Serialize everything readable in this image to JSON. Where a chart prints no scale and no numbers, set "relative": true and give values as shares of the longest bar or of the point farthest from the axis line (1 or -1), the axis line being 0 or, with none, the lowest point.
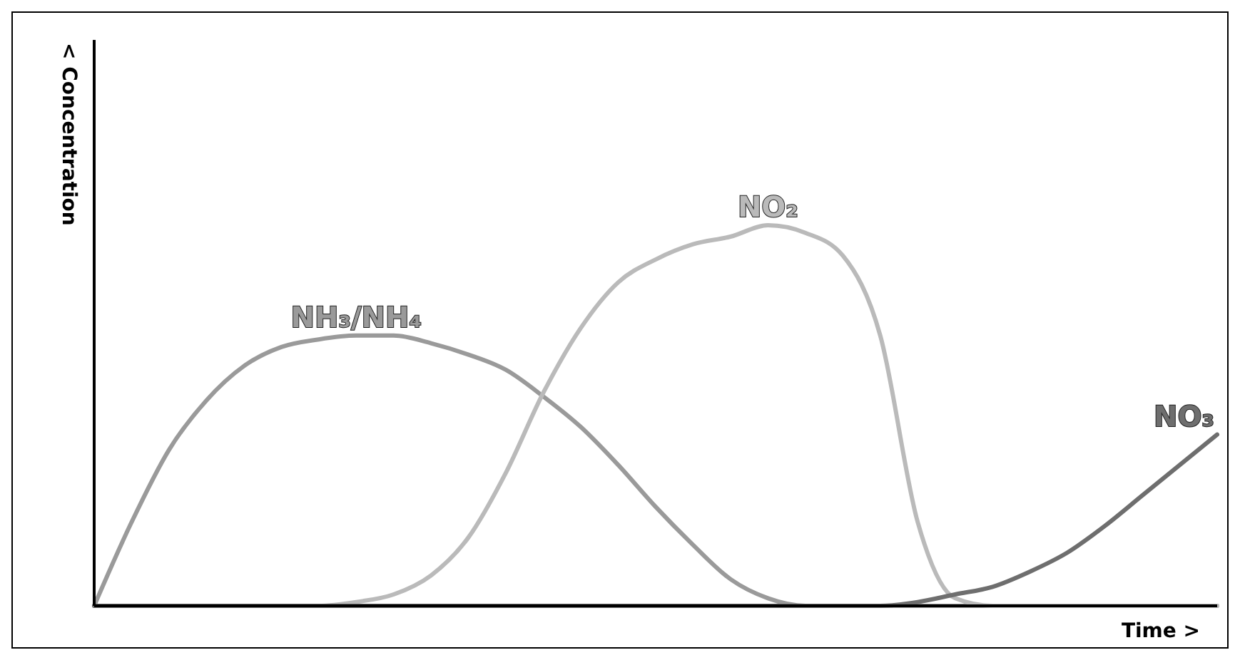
{
  "chart_data": {
    "type": "line",
    "relative": true,
    "xlabel": "Time >",
    "ylabel": "< Concentration",
    "marker": "none",
    "line_style": "solid",
    "categories": [
      null,
      null,
      null,
      null,
      null,
      null,
      null,
      null,
      null,
      null,
      null,
      null,
      null,
      null,
      null,
      null,
      null,
      null,
      null,
      null,
      null,
      null,
      null,
      null,
      null,
      null,
      null,
      null,
      null,
      null,
      null
    ],
    "series": [
      {
        "name": "NH₃/NH₄",
        "color": "#9a9a9a",
        "values": [
          0,
          0.22,
          0.41,
          0.54,
          0.63,
          0.68,
          0.7,
          0.71,
          0.71,
          0.69,
          0.66,
          0.62,
          0.55,
          0.47,
          0.37,
          0.26,
          0.16,
          0.07,
          0.02,
          0,
          0,
          0,
          0,
          0,
          0,
          0,
          0,
          0,
          0,
          0,
          0
        ]
      },
      {
        "name": "NO₂",
        "color": "#bababa",
        "values": [
          0,
          0,
          0,
          0,
          0,
          0,
          0,
          0.01,
          0.03,
          0.08,
          0.18,
          0.35,
          0.56,
          0.73,
          0.85,
          0.91,
          0.95,
          0.97,
          1,
          0.98,
          0.92,
          0.71,
          0.22,
          0.02,
          0,
          0,
          0,
          0,
          0,
          0,
          0
        ]
      },
      {
        "name": "NO₃",
        "color": "#6e6e6e",
        "values": [
          0,
          0,
          0,
          0,
          0,
          0,
          0,
          0,
          0,
          0,
          0,
          0,
          0,
          0,
          0,
          0,
          0,
          0,
          0,
          0,
          0,
          0,
          0.01,
          0.03,
          0.05,
          0.09,
          0.14,
          0.21,
          0.29,
          0.37,
          0.45
        ]
      }
    ]
  }
}
